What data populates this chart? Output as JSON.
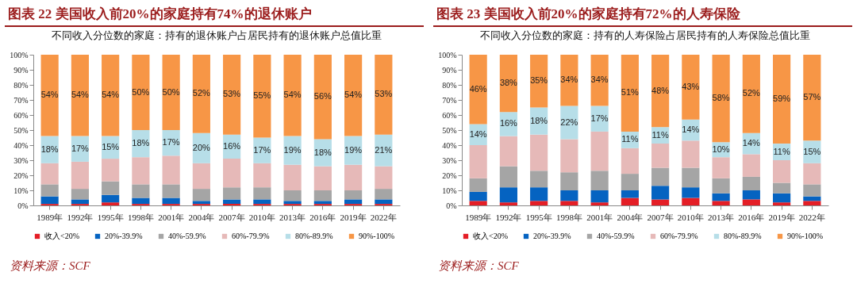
{
  "chart_data": [
    {
      "type": "bar",
      "stacked": true,
      "title": "图表 22 美国收入前20%的家庭持有74%的退休账户",
      "subtitle": "不同收入分位数的家庭：持有的退休账户占居民持有的退休账户总值比重",
      "annotations": [
        "资料来源：SCF"
      ],
      "categories": [
        "1989年",
        "1992年",
        "1995年",
        "1998年",
        "2001年",
        "2004年",
        "2007年",
        "2010年",
        "2013年",
        "2016年",
        "2019年",
        "2022年"
      ],
      "ylim": [
        0,
        100
      ],
      "yticks": [
        {
          "value": 0,
          "label": "0%"
        },
        {
          "value": 10,
          "label": "10%"
        },
        {
          "value": 20,
          "label": "20%"
        },
        {
          "value": 30,
          "label": "30%"
        },
        {
          "value": 40,
          "label": "40%"
        },
        {
          "value": 50,
          "label": "50%"
        },
        {
          "value": 60,
          "label": "60%"
        },
        {
          "value": 70,
          "label": "70%"
        },
        {
          "value": 80,
          "label": "80%"
        },
        {
          "value": 90,
          "label": "90%"
        },
        {
          "value": 100,
          "label": "100%"
        }
      ],
      "grid": false,
      "legend": "bottom",
      "series": [
        {
          "name": "收入<20%",
          "color": "#e41e26",
          "values": [
            1,
            1,
            2,
            1,
            1,
            1,
            1,
            1,
            1,
            1,
            1,
            1
          ]
        },
        {
          "name": "20%-39.9%",
          "color": "#0563c1",
          "values": [
            5,
            3,
            5,
            4,
            4,
            2,
            3,
            3,
            2,
            2,
            3,
            3
          ]
        },
        {
          "name": "40%-59.9%",
          "color": "#a5a5a5",
          "values": [
            8,
            7,
            9,
            9,
            9,
            8,
            8,
            8,
            7,
            7,
            6,
            7
          ]
        },
        {
          "name": "60%-79.9%",
          "color": "#e6b9b8",
          "values": [
            14,
            18,
            15,
            18,
            19,
            17,
            19,
            16,
            17,
            16,
            17,
            15
          ]
        },
        {
          "name": "80%-89.9%",
          "color": "#b7dee8",
          "values": [
            18,
            17,
            15,
            18,
            17,
            20,
            16,
            17,
            19,
            18,
            19,
            21
          ],
          "value_labels": [
            "18%",
            "17%",
            "15%",
            "18%",
            "17%",
            "20%",
            "16%",
            "17%",
            "19%",
            "18%",
            "19%",
            "21%"
          ]
        },
        {
          "name": "90%-100%",
          "color": "#f79646",
          "values": [
            54,
            54,
            54,
            50,
            50,
            52,
            53,
            55,
            54,
            56,
            54,
            53
          ],
          "value_labels": [
            "54%",
            "54%",
            "54%",
            "50%",
            "50%",
            "52%",
            "53%",
            "55%",
            "54%",
            "56%",
            "54%",
            "53%"
          ]
        }
      ]
    },
    {
      "type": "bar",
      "stacked": true,
      "title": "图表 23 美国收入前20%的家庭持有72%的人寿保险",
      "subtitle": "不同收入分位数的家庭：持有的人寿保险占居民持有的人寿保险总值比重",
      "annotations": [
        "资料来源：SCF"
      ],
      "categories": [
        "1989年",
        "1992年",
        "1995年",
        "1998年",
        "2001年",
        "2004年",
        "2007年",
        "2010年",
        "2013年",
        "2016年",
        "2019年",
        "2022年"
      ],
      "ylim": [
        0,
        100
      ],
      "yticks": [
        {
          "value": 0,
          "label": "0%"
        },
        {
          "value": 10,
          "label": "10%"
        },
        {
          "value": 20,
          "label": "20%"
        },
        {
          "value": 30,
          "label": "30%"
        },
        {
          "value": 40,
          "label": "40%"
        },
        {
          "value": 50,
          "label": "50%"
        },
        {
          "value": 60,
          "label": "60%"
        },
        {
          "value": 70,
          "label": "70%"
        },
        {
          "value": 80,
          "label": "80%"
        },
        {
          "value": 90,
          "label": "90%"
        },
        {
          "value": 100,
          "label": "100%"
        }
      ],
      "grid": false,
      "legend": "bottom",
      "series": [
        {
          "name": "收入<20%",
          "color": "#e41e26",
          "values": [
            3,
            2,
            3,
            3,
            2,
            5,
            4,
            5,
            3,
            4,
            2,
            3
          ]
        },
        {
          "name": "20%-39.9%",
          "color": "#0563c1",
          "values": [
            6,
            10,
            9,
            7,
            8,
            5,
            9,
            7,
            5,
            6,
            6,
            3
          ]
        },
        {
          "name": "40%-59.9%",
          "color": "#a5a5a5",
          "values": [
            9,
            14,
            11,
            12,
            13,
            11,
            12,
            13,
            10,
            9,
            7,
            8
          ]
        },
        {
          "name": "60%-79.9%",
          "color": "#e6b9b8",
          "values": [
            22,
            20,
            24,
            22,
            26,
            17,
            16,
            18,
            14,
            15,
            15,
            14
          ]
        },
        {
          "name": "80%-89.9%",
          "color": "#b7dee8",
          "values": [
            14,
            16,
            18,
            22,
            17,
            11,
            11,
            14,
            10,
            14,
            11,
            15
          ],
          "value_labels": [
            "14%",
            "16%",
            "18%",
            "22%",
            "17%",
            "11%",
            "11%",
            "14%",
            "10%",
            "14%",
            "11%",
            "15%"
          ]
        },
        {
          "name": "90%-100%",
          "color": "#f79646",
          "values": [
            46,
            38,
            35,
            34,
            34,
            51,
            48,
            43,
            58,
            52,
            59,
            57
          ],
          "value_labels": [
            "46%",
            "38%",
            "35%",
            "34%",
            "34%",
            "51%",
            "48%",
            "43%",
            "58%",
            "52%",
            "59%",
            "57%"
          ]
        }
      ]
    }
  ]
}
